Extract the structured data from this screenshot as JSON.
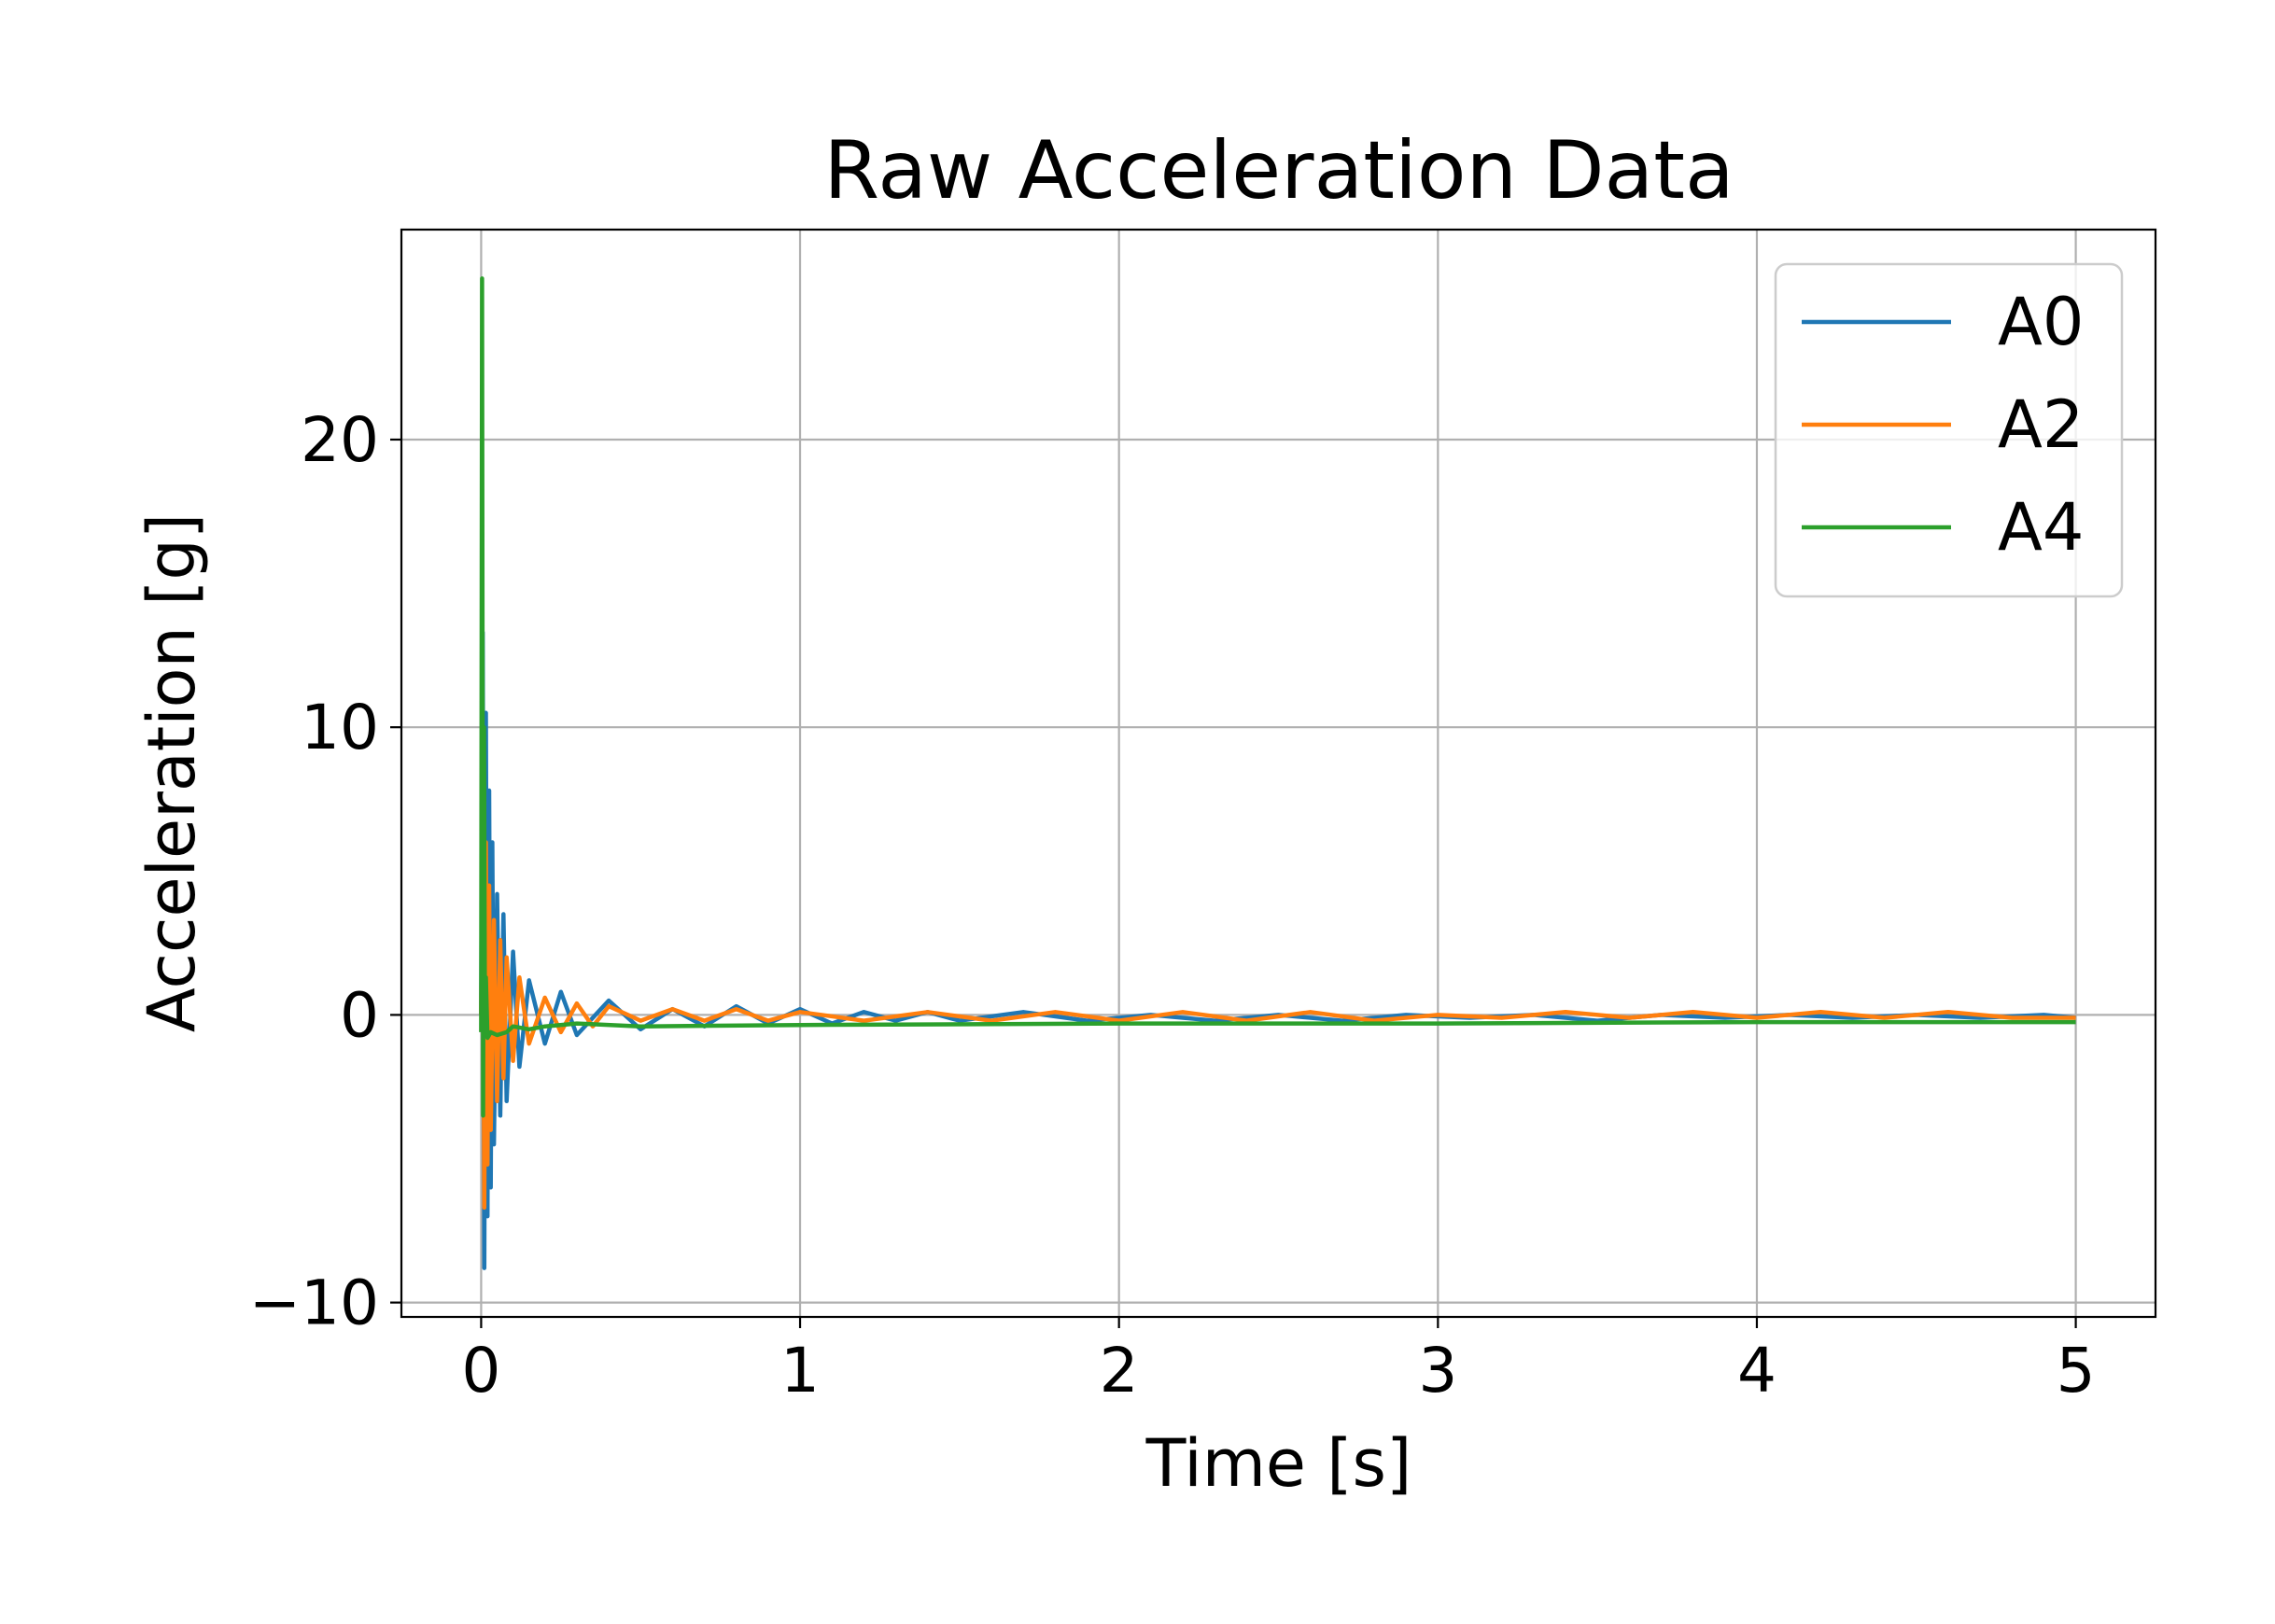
{
  "chart_data": {
    "type": "line",
    "title": "Raw Acceleration Data",
    "xlabel": "Time [s]",
    "ylabel": "Acceleration [g]",
    "xlim": [
      -0.25,
      5.25
    ],
    "ylim": [
      -10.5,
      27.3
    ],
    "xticks": [
      0,
      1,
      2,
      3,
      4,
      5
    ],
    "xtick_labels": [
      "0",
      "1",
      "2",
      "3",
      "4",
      "5"
    ],
    "yticks": [
      -10,
      0,
      10,
      20
    ],
    "ytick_labels": [
      "−10",
      "0",
      "10",
      "20"
    ],
    "grid": true,
    "legend_position": "top-right",
    "series": [
      {
        "name": "A0",
        "color": "#1f77b4",
        "x": [
          0,
          0.005,
          0.01,
          0.015,
          0.02,
          0.025,
          0.03,
          0.035,
          0.04,
          0.05,
          0.06,
          0.07,
          0.08,
          0.1,
          0.12,
          0.15,
          0.2,
          0.25,
          0.3,
          0.4,
          0.5,
          0.6,
          0.7,
          0.8,
          0.9,
          1.0,
          1.1,
          1.2,
          1.3,
          1.4,
          1.5,
          1.7,
          1.9,
          2.1,
          2.3,
          2.5,
          2.7,
          2.9,
          3.1,
          3.3,
          3.5,
          3.7,
          3.9,
          4.1,
          4.3,
          4.5,
          4.7,
          4.9,
          5.0
        ],
        "y": [
          0,
          13.3,
          -8.8,
          10.5,
          -7.0,
          7.8,
          -6.0,
          6.0,
          -4.5,
          4.2,
          -3.5,
          3.5,
          -3.0,
          2.2,
          -1.8,
          1.2,
          -1.0,
          0.8,
          -0.7,
          0.5,
          -0.5,
          0.2,
          -0.4,
          0.3,
          -0.3,
          0.2,
          -0.3,
          0.1,
          -0.2,
          0.1,
          -0.2,
          0.1,
          -0.2,
          0.0,
          -0.2,
          0.0,
          -0.2,
          0.0,
          -0.1,
          0.0,
          -0.2,
          0.0,
          -0.1,
          0.0,
          -0.1,
          0.0,
          -0.1,
          0.0,
          -0.1
        ]
      },
      {
        "name": "A2",
        "color": "#ff7f0e",
        "x": [
          0,
          0.005,
          0.01,
          0.015,
          0.02,
          0.025,
          0.03,
          0.04,
          0.05,
          0.06,
          0.07,
          0.08,
          0.1,
          0.12,
          0.15,
          0.2,
          0.25,
          0.3,
          0.35,
          0.4,
          0.5,
          0.6,
          0.7,
          0.8,
          0.9,
          1.0,
          1.2,
          1.4,
          1.6,
          1.8,
          2.0,
          2.2,
          2.4,
          2.6,
          2.8,
          3.0,
          3.2,
          3.4,
          3.6,
          3.8,
          4.0,
          4.2,
          4.4,
          4.6,
          4.8,
          5.0
        ],
        "y": [
          0,
          6.2,
          -6.7,
          6.0,
          -5.2,
          4.5,
          -4.0,
          3.3,
          -3.0,
          2.6,
          -2.2,
          2.0,
          -1.6,
          1.3,
          -1.0,
          0.6,
          -0.6,
          0.4,
          -0.4,
          0.3,
          -0.2,
          0.2,
          -0.2,
          0.2,
          -0.2,
          0.1,
          -0.2,
          0.1,
          -0.2,
          0.1,
          -0.2,
          0.1,
          -0.2,
          0.1,
          -0.2,
          0.0,
          -0.1,
          0.1,
          -0.1,
          0.1,
          -0.1,
          0.1,
          -0.1,
          0.1,
          -0.1,
          -0.1
        ]
      },
      {
        "name": "A4",
        "color": "#2ca02c",
        "x": [
          0,
          0.003,
          0.006,
          0.009,
          0.012,
          0.015,
          0.02,
          0.03,
          0.05,
          0.08,
          0.1,
          0.15,
          0.2,
          0.3,
          0.5,
          1.0,
          2.0,
          3.0,
          4.0,
          5.0
        ],
        "y": [
          -0.6,
          25.6,
          -3.5,
          10.0,
          -0.7,
          1.3,
          -0.8,
          -0.6,
          -0.7,
          -0.6,
          -0.4,
          -0.5,
          -0.4,
          -0.3,
          -0.4,
          -0.35,
          -0.3,
          -0.3,
          -0.25,
          -0.25
        ]
      }
    ]
  }
}
